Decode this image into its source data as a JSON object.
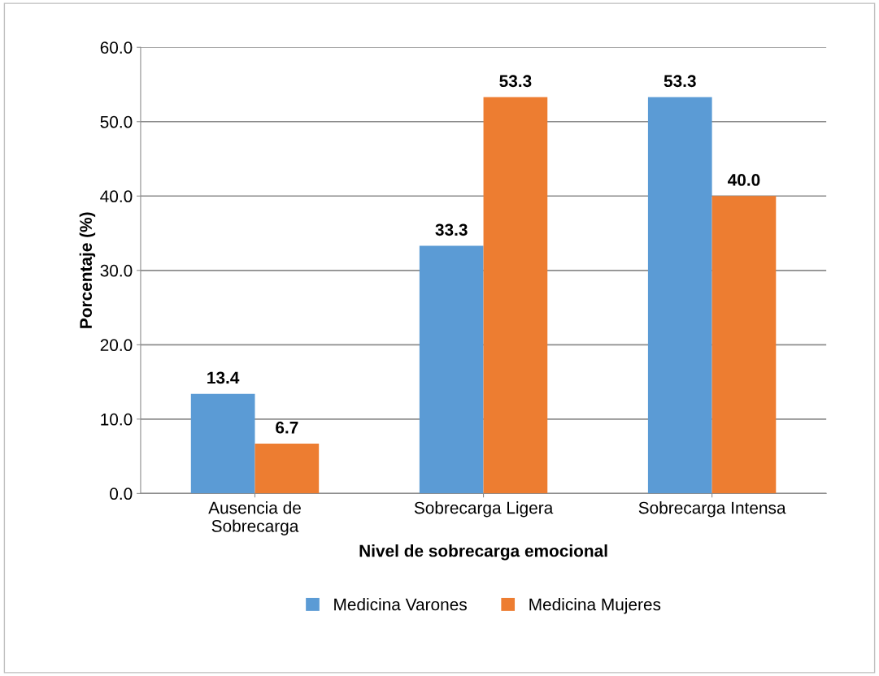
{
  "chart_data": {
    "type": "bar",
    "xlabel": "Nivel de sobrecarga emocional",
    "ylabel": "Porcentaje (%)",
    "categories": [
      "Ausencia de\nSobrecarga",
      "Sobrecarga Ligera",
      "Sobrecarga Intensa"
    ],
    "series": [
      {
        "name": "Medicina Varones",
        "color": "#5b9bd5",
        "values": [
          13.4,
          33.3,
          53.3
        ],
        "value_labels": [
          "13.4",
          "33.3",
          "53.3"
        ]
      },
      {
        "name": "Medicina Mujeres",
        "color": "#ed7d31",
        "values": [
          6.7,
          53.3,
          40
        ],
        "value_labels": [
          "6.7",
          "53.3",
          "40.0"
        ]
      }
    ],
    "ylim": [
      0,
      60
    ],
    "yticks": [
      {
        "value": 0,
        "label": "0.0"
      },
      {
        "value": 10,
        "label": "10.0"
      },
      {
        "value": 20,
        "label": "20.0"
      },
      {
        "value": 30,
        "label": "30.0"
      },
      {
        "value": 40,
        "label": "40.0"
      },
      {
        "value": 50,
        "label": "50.0"
      },
      {
        "value": 60,
        "label": "60.0"
      }
    ],
    "grid": "y",
    "legend": "bottom"
  }
}
